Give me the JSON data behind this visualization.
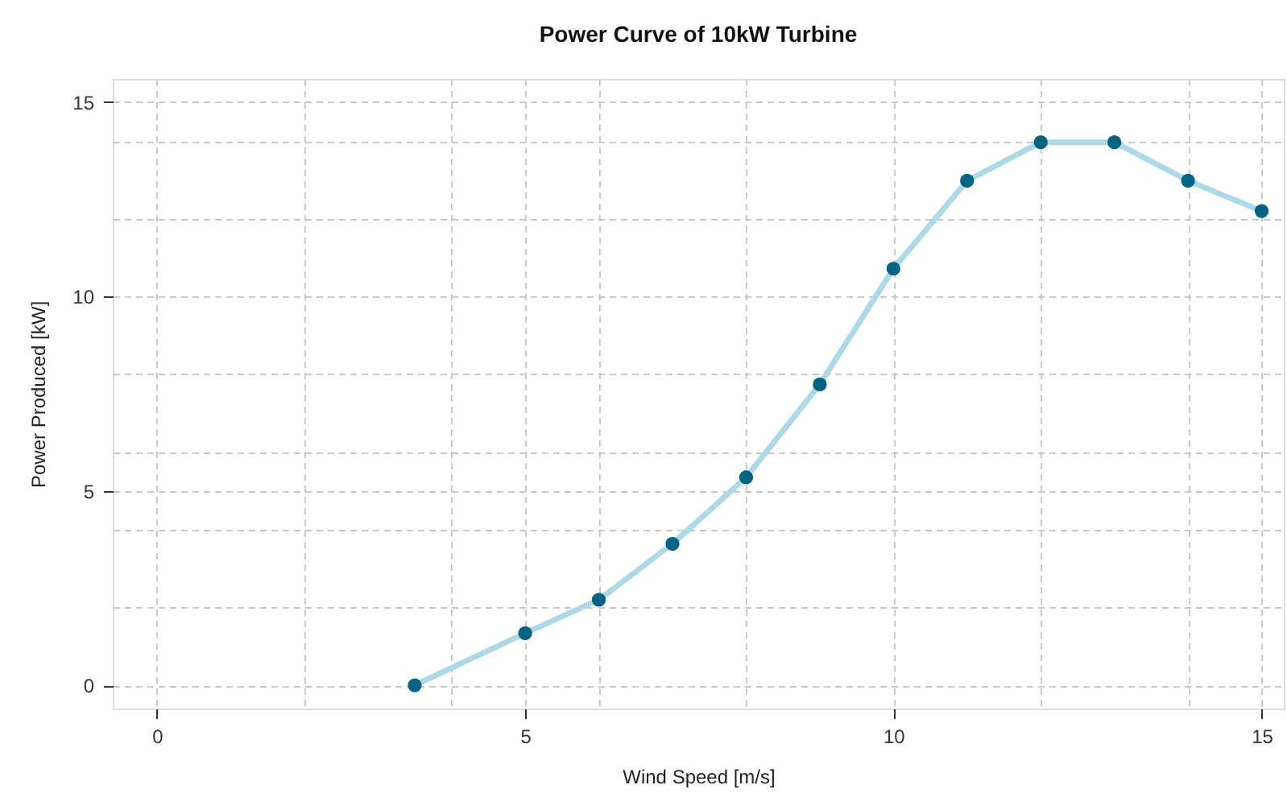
{
  "chart_data": {
    "type": "line",
    "title": "Power Curve of 10kW Turbine",
    "xlabel": "Wind Speed [m/s]",
    "ylabel": "Power Produced [kW]",
    "x": [
      3.5,
      5,
      6,
      7,
      8,
      9,
      10,
      11,
      12,
      13,
      14,
      15
    ],
    "series": [
      {
        "color": "#add8e6",
        "values": [
          0,
          1.34,
          2.2,
          3.64,
          5.35,
          7.74,
          10.72,
          12.98,
          13.97,
          13.97,
          12.98,
          12.2
        ]
      }
    ],
    "xlim": [
      -0.6,
      15.3
    ],
    "ylim": [
      -0.6,
      15.6
    ],
    "xticks": [
      0,
      {
        "value": 2,
        "label": null
      },
      {
        "value": 4,
        "label": null
      },
      5,
      {
        "value": 6,
        "label": null
      },
      {
        "value": 8,
        "label": null
      },
      10,
      {
        "value": 12,
        "label": null
      },
      {
        "value": 14,
        "label": null
      },
      15
    ],
    "yticks": [
      0,
      {
        "value": 2,
        "label": null
      },
      {
        "value": 4,
        "label": null
      },
      5,
      {
        "value": 6,
        "label": null
      },
      {
        "value": 8,
        "label": null
      },
      10,
      {
        "value": 12,
        "label": null
      },
      {
        "value": 14,
        "label": null
      },
      15
    ],
    "grid": true,
    "marker": "circle",
    "line_style": "solid"
  }
}
